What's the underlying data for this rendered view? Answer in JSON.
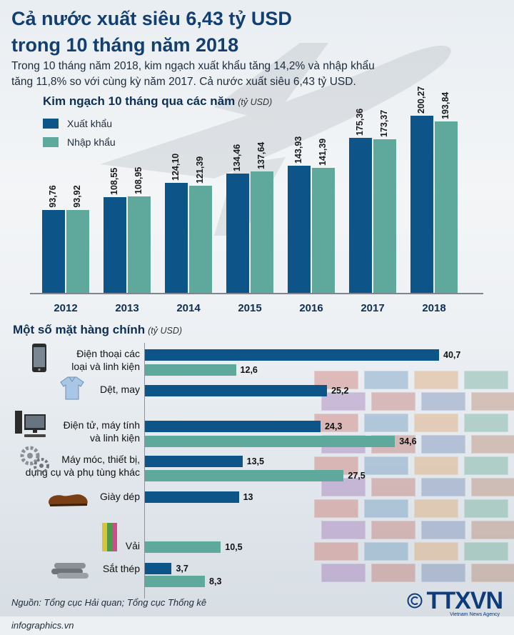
{
  "header": {
    "title_line1": "Cả nước xuất siêu 6,43 tỷ USD",
    "title_line2": "trong 10 tháng năm 2018",
    "intro_line1": "Trong 10 tháng năm 2018, kim ngạch xuất khẩu tăng 14,2% và nhập khẩu",
    "intro_line2": "tăng 11,8% so với cùng kỳ năm 2017. Cả nước xuất siêu 6,43 tỷ USD."
  },
  "colors": {
    "export": "#0d5589",
    "import": "#5fa89c",
    "title": "#123f6f"
  },
  "chart_data": [
    {
      "type": "bar",
      "title": "Kim ngạch 10 tháng qua các năm",
      "unit": "(tỷ USD)",
      "legend_placement": "top-left",
      "categories": [
        "2012",
        "2013",
        "2014",
        "2015",
        "2016",
        "2017",
        "2018"
      ],
      "series": [
        {
          "name": "Xuất khẩu",
          "values": [
            93.76,
            108.55,
            124.1,
            134.46,
            143.93,
            175.36,
            200.27
          ],
          "labels": [
            "93,76",
            "108,55",
            "124,10",
            "134,46",
            "143,93",
            "175,36",
            "200,27"
          ]
        },
        {
          "name": "Nhập khẩu",
          "values": [
            93.92,
            108.95,
            121.39,
            137.64,
            141.39,
            173.37,
            193.84
          ],
          "labels": [
            "93,92",
            "108,95",
            "121,39",
            "137,64",
            "141,39",
            "173,37",
            "193,84"
          ]
        }
      ],
      "ylim": [
        0,
        210
      ]
    },
    {
      "type": "bar",
      "orientation": "horizontal",
      "title": "Một số mặt hàng chính",
      "unit": "(tỷ USD)",
      "xlim": [
        0,
        42
      ],
      "items": [
        {
          "label_lines": [
            "Điện thoại các",
            "loại và linh kiện"
          ],
          "icon": "smartphone-icon",
          "bars": [
            {
              "series": "Xuất khẩu",
              "value": 40.7,
              "label": "40,7"
            },
            {
              "series": "Nhập khẩu",
              "value": 12.6,
              "label": "12,6"
            }
          ]
        },
        {
          "label_lines": [
            "Dệt, may"
          ],
          "icon": "shirt-icon",
          "bars": [
            {
              "series": "Xuất khẩu",
              "value": 25.2,
              "label": "25,2"
            }
          ]
        },
        {
          "label_lines": [
            "Điện tử, máy tính",
            "và linh kiện"
          ],
          "icon": "computer-icon",
          "bars": [
            {
              "series": "Xuất khẩu",
              "value": 24.3,
              "label": "24,3"
            },
            {
              "series": "Nhập khẩu",
              "value": 34.6,
              "label": "34,6"
            }
          ]
        },
        {
          "label_lines": [
            "Máy móc, thiết bị,",
            "dụng cụ và phụ tùng khác"
          ],
          "icon": "gears-icon",
          "bars": [
            {
              "series": "Xuất khẩu",
              "value": 13.5,
              "label": "13,5"
            },
            {
              "series": "Nhập khẩu",
              "value": 27.5,
              "label": "27,5"
            }
          ]
        },
        {
          "label_lines": [
            "Giày dép"
          ],
          "icon": "shoe-icon",
          "bars": [
            {
              "series": "Xuất khẩu",
              "value": 13,
              "label": "13"
            }
          ]
        },
        {
          "label_lines": [
            "Vải"
          ],
          "icon": "fabric-icon",
          "bars": [
            {
              "series": "Nhập khẩu",
              "value": 10.5,
              "label": "10,5"
            }
          ]
        },
        {
          "label_lines": [
            "Sắt thép"
          ],
          "icon": "steel-pipes-icon",
          "bars": [
            {
              "series": "Xuất khẩu",
              "value": 3.7,
              "label": "3,7"
            },
            {
              "series": "Nhập khẩu",
              "value": 8.3,
              "label": "8,3"
            }
          ]
        }
      ]
    }
  ],
  "footer": {
    "source": "Nguồn: Tổng cục Hải quan; Tổng cục Thống kê",
    "site": "infographics.vn",
    "logo": "TTXVN",
    "logo_tag": "Vietnam News Agency"
  }
}
